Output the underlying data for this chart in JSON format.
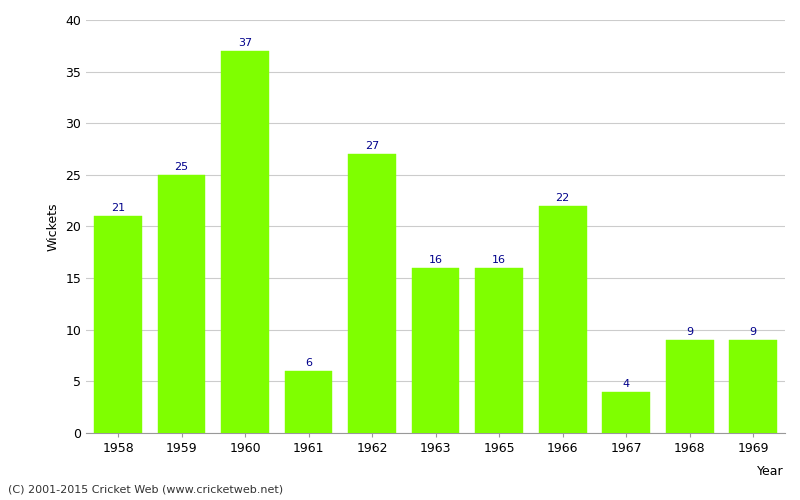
{
  "years": [
    "1958",
    "1959",
    "1960",
    "1961",
    "1962",
    "1963",
    "1965",
    "1966",
    "1967",
    "1968",
    "1969"
  ],
  "wickets": [
    21,
    25,
    37,
    6,
    27,
    16,
    16,
    22,
    4,
    9,
    9
  ],
  "bar_color": "#7fff00",
  "bar_edge_color": "#7fff00",
  "label_color": "#00008b",
  "xlabel": "Year",
  "ylabel": "Wickets",
  "ylim": [
    0,
    40
  ],
  "yticks": [
    0,
    5,
    10,
    15,
    20,
    25,
    30,
    35,
    40
  ],
  "footnote": "(C) 2001-2015 Cricket Web (www.cricketweb.net)",
  "background_color": "#ffffff",
  "label_fontsize": 8,
  "axis_fontsize": 9,
  "footnote_fontsize": 8,
  "bar_width": 0.75
}
